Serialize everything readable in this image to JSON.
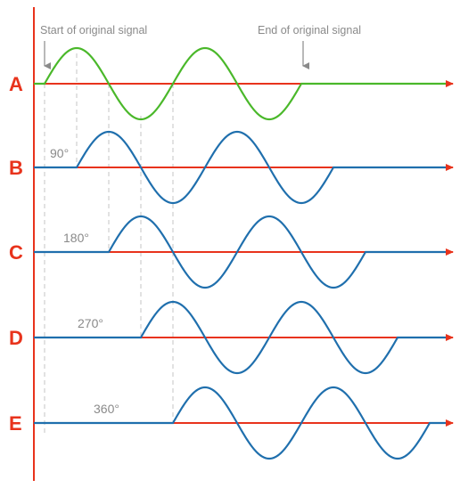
{
  "annotations": {
    "start_label": "Start of original signal",
    "end_label": "End of original signal"
  },
  "rows": [
    {
      "letter": "A",
      "phase_label": "",
      "phase_degrees": 0,
      "wave": "original"
    },
    {
      "letter": "B",
      "phase_label": "90°",
      "phase_degrees": 90,
      "wave": "shifted"
    },
    {
      "letter": "C",
      "phase_label": "180°",
      "phase_degrees": 180,
      "wave": "shifted"
    },
    {
      "letter": "D",
      "phase_label": "270°",
      "phase_degrees": 270,
      "wave": "shifted"
    },
    {
      "letter": "E",
      "phase_label": "360°",
      "phase_degrees": 360,
      "wave": "shifted"
    }
  ],
  "signal": {
    "cycles": 2
  },
  "colors": {
    "axis": "#e8331c",
    "original_wave": "#4ab82a",
    "shifted_wave": "#1f6fad",
    "letter": "#e8331c",
    "phase_label": "#8a8a8a",
    "annotation": "#8a8a8a",
    "guide_line": "#c4c4c4"
  }
}
